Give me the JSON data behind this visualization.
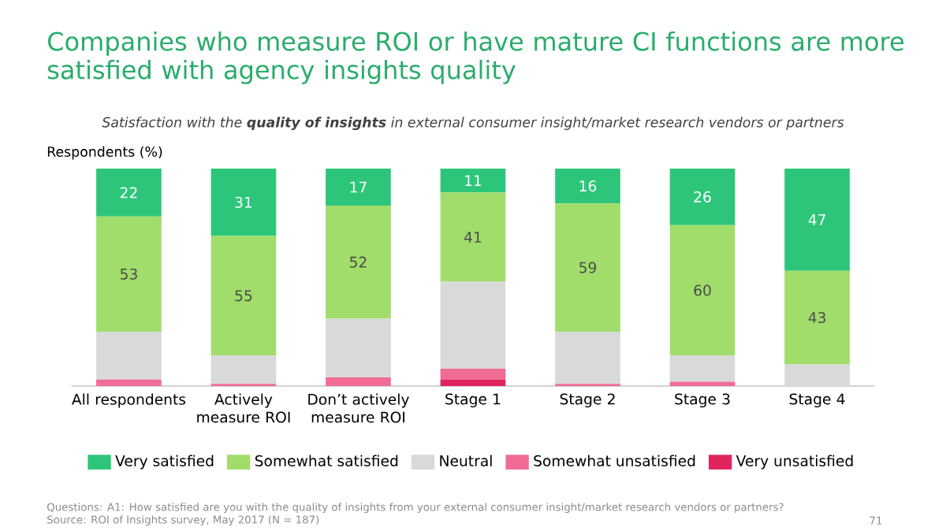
{
  "chart_data": {
    "type": "bar",
    "stacked": true,
    "title": "Companies who measure ROI or have mature CI functions are more satisfied with agency insights quality",
    "subtitle": "Satisfaction with the **quality of insights** in external consumer insight/market research vendors or partners",
    "ylabel": "Respondents (%)",
    "categories": [
      "All respondents",
      "Actively measure ROI",
      "Don’t actively measure ROI",
      "Stage 1",
      "Stage 2",
      "Stage 3",
      "Stage 4"
    ],
    "ylim": [
      0,
      100
    ],
    "tick_labels": "x",
    "legend": "bottom",
    "series": [
      {
        "name": "Very unsatisfied",
        "color": "#e0245e",
        "values": [
          0,
          0,
          0,
          3,
          0,
          0,
          0
        ]
      },
      {
        "name": "Somewhat unsatisfied",
        "color": "#f06c94",
        "values": [
          3,
          1,
          4,
          5,
          1,
          2,
          0
        ]
      },
      {
        "name": "Neutral",
        "color": "#d9d9d9",
        "values": [
          22,
          13,
          27,
          40,
          24,
          12,
          10
        ]
      },
      {
        "name": "Somewhat satisfied",
        "color": "#a0dd6a",
        "values": [
          53,
          55,
          52,
          41,
          59,
          60,
          43
        ],
        "value_labels": [
          "53",
          "55",
          "52",
          "41",
          "59",
          "60",
          "43"
        ]
      },
      {
        "name": "Very satisfied",
        "color": "#2dc57a",
        "values": [
          22,
          31,
          17,
          11,
          16,
          26,
          47
        ],
        "value_labels": [
          "22",
          "31",
          "17",
          "11",
          "16",
          "26",
          "47"
        ]
      }
    ],
    "annotations": [
      "Questions: A1: How satisfied are you with the quality of insights from your external consumer insight/market research vendors or partners?",
      "Source: ROI of Insights survey, May 2017 (N = 187)",
      "71"
    ]
  }
}
